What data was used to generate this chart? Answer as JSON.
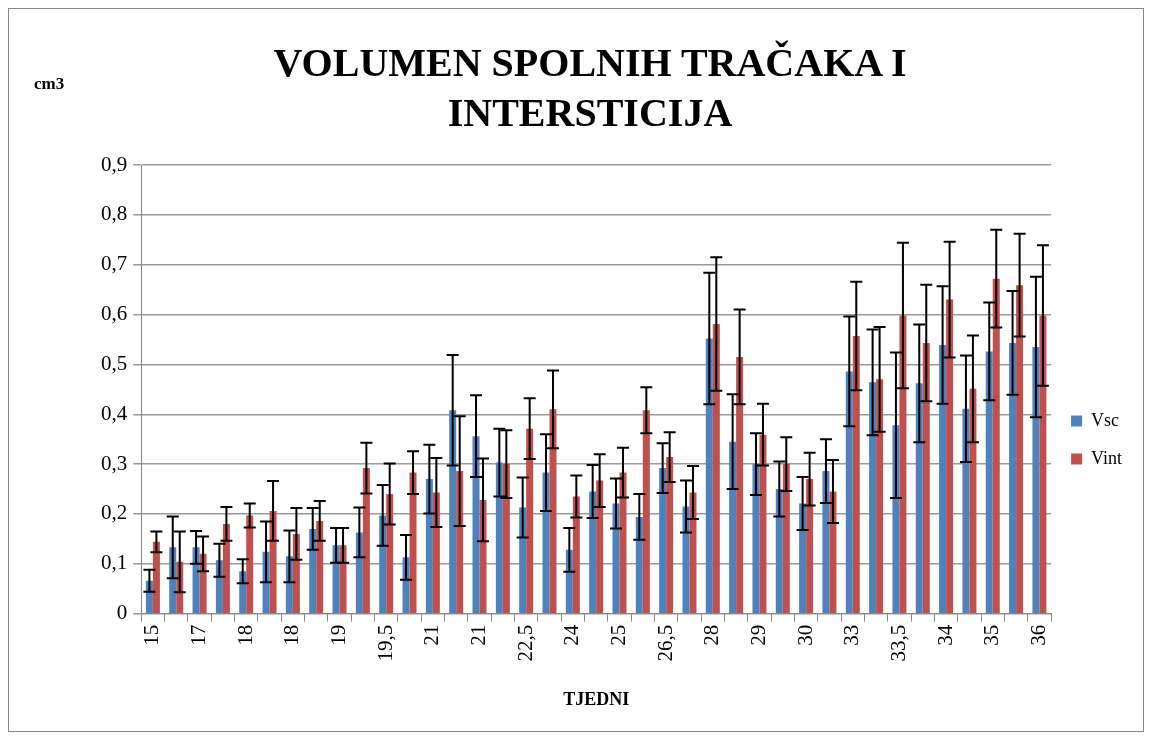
{
  "chart_data": {
    "type": "bar",
    "title": "VOLUMEN SPOLNIH TRAČAKA I INTERSTICIJA",
    "ylabel": "cm3",
    "xlabel": "TJEDNI",
    "categories": [
      "15",
      null,
      "17",
      null,
      "18",
      null,
      "18",
      null,
      "19",
      null,
      "19,5",
      null,
      "21",
      null,
      "21",
      null,
      "22,5",
      null,
      "24",
      null,
      "25",
      null,
      "26,5",
      null,
      "28",
      null,
      "29",
      null,
      "30",
      null,
      "33",
      null,
      "33,5",
      null,
      "34",
      null,
      "35",
      null,
      "36"
    ],
    "series": [
      {
        "name": "Vsc",
        "color": "#4f81bd",
        "values": [
          0.066,
          0.133,
          0.133,
          0.107,
          0.085,
          0.124,
          0.115,
          0.17,
          0.137,
          0.163,
          0.197,
          0.113,
          0.27,
          0.408,
          0.356,
          0.303,
          0.213,
          0.283,
          0.128,
          0.245,
          0.221,
          0.194,
          0.292,
          0.215,
          0.552,
          0.345,
          0.3,
          0.25,
          0.221,
          0.286,
          0.486,
          0.464,
          0.378,
          0.462,
          0.539,
          0.411,
          0.526,
          0.543,
          0.535
        ],
        "errors": [
          0.022,
          0.062,
          0.033,
          0.033,
          0.024,
          0.061,
          0.052,
          0.042,
          0.035,
          0.05,
          0.061,
          0.045,
          0.069,
          0.111,
          0.082,
          0.068,
          0.06,
          0.077,
          0.044,
          0.053,
          0.05,
          0.046,
          0.05,
          0.052,
          0.132,
          0.095,
          0.062,
          0.055,
          0.053,
          0.064,
          0.11,
          0.106,
          0.146,
          0.118,
          0.118,
          0.107,
          0.098,
          0.104,
          0.141
        ]
      },
      {
        "name": "Vint",
        "color": "#c0504d",
        "values": [
          0.144,
          0.104,
          0.12,
          0.18,
          0.197,
          0.206,
          0.16,
          0.186,
          0.137,
          0.292,
          0.24,
          0.283,
          0.243,
          0.286,
          0.228,
          0.3,
          0.371,
          0.41,
          0.235,
          0.267,
          0.283,
          0.408,
          0.314,
          0.243,
          0.581,
          0.515,
          0.359,
          0.3,
          0.27,
          0.245,
          0.557,
          0.47,
          0.598,
          0.543,
          0.63,
          0.451,
          0.672,
          0.659,
          0.598
        ],
        "errors": [
          0.021,
          0.061,
          0.035,
          0.034,
          0.024,
          0.06,
          0.052,
          0.04,
          0.035,
          0.051,
          0.061,
          0.043,
          0.069,
          0.11,
          0.083,
          0.068,
          0.061,
          0.078,
          0.042,
          0.053,
          0.05,
          0.046,
          0.05,
          0.053,
          0.134,
          0.095,
          0.062,
          0.054,
          0.053,
          0.063,
          0.109,
          0.105,
          0.146,
          0.117,
          0.116,
          0.107,
          0.098,
          0.103,
          0.141
        ]
      }
    ],
    "ylim": [
      0,
      0.9
    ],
    "yticks": [
      0,
      {
        "value": 0.1,
        "label": "0,1"
      },
      {
        "value": 0.2,
        "label": "0,2"
      },
      {
        "value": 0.3,
        "label": "0,3"
      },
      {
        "value": 0.4,
        "label": "0,4"
      },
      {
        "value": 0.5,
        "label": "0,5"
      },
      {
        "value": 0.6,
        "label": "0,6"
      },
      {
        "value": 0.7,
        "label": "0,7"
      },
      {
        "value": 0.8,
        "label": "0,8"
      },
      {
        "value": 0.9,
        "label": "0,9"
      }
    ],
    "grid": "y",
    "legend": "right"
  }
}
